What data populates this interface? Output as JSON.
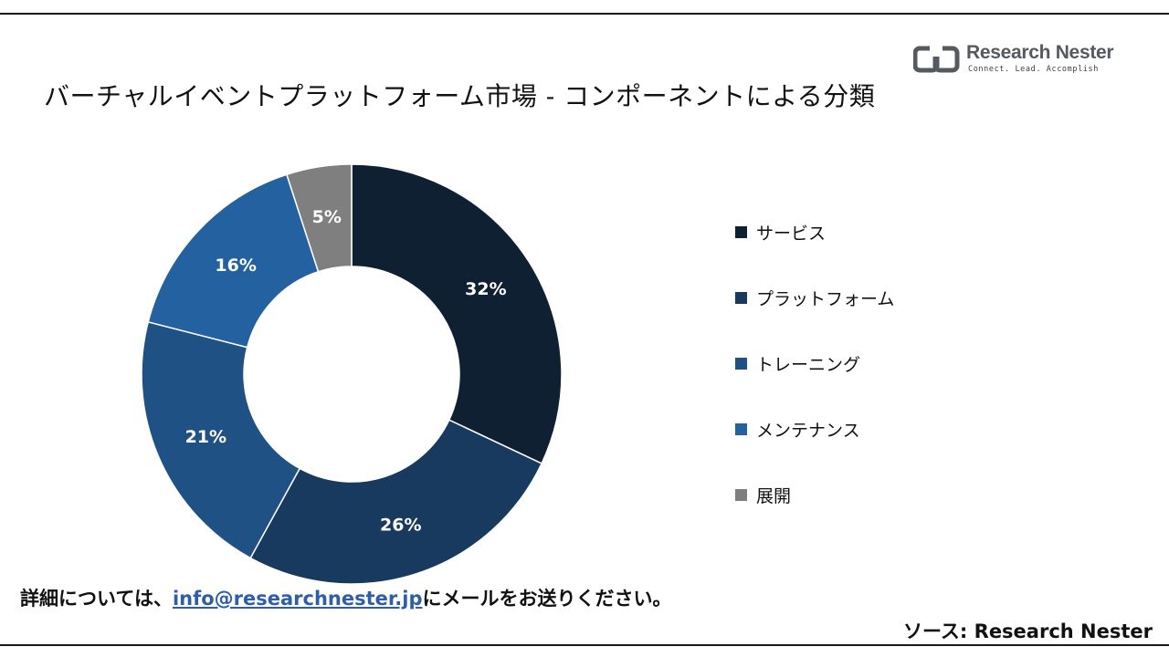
{
  "header": {
    "logo_name": "Research Nester",
    "logo_tagline": "Connect. Lead. Accomplish",
    "title": "バーチャルイベントプラットフォーム市場 - コンポーネントによる分類"
  },
  "chart_data": {
    "type": "pie",
    "donut": true,
    "title": "バーチャルイベントプラットフォーム市場 - コンポーネントによる分類",
    "legend_position": "right",
    "categories": [
      "サービス",
      "プラットフォーム",
      "トレーニング",
      "メンテナンス",
      "展開"
    ],
    "values": [
      32,
      26,
      21,
      16,
      5
    ],
    "value_labels": [
      "32%",
      "26%",
      "21%",
      "16%",
      "5%"
    ],
    "colors": [
      "#0f2033",
      "#183a5e",
      "#1f5185",
      "#2461a0",
      "#7f7f7f"
    ]
  },
  "footer": {
    "contact_prefix": "詳細については、",
    "contact_email": "info@researchnester.jp",
    "contact_suffix": "にメールをお送りください。",
    "source": "ソース: Research Nester"
  }
}
